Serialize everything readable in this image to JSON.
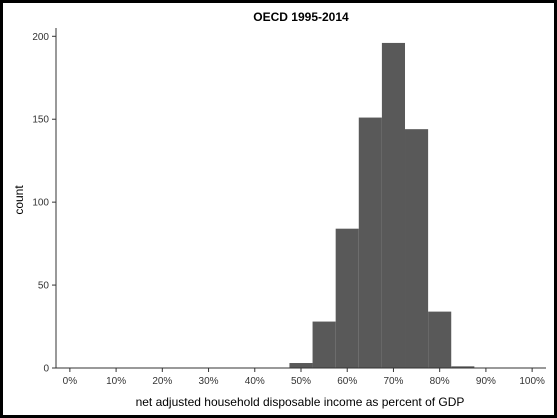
{
  "chart_data": {
    "type": "histogram",
    "title": "OECD 1995-2014",
    "xlabel": "net adjusted household disposable income as percent of GDP",
    "ylabel": "count",
    "xlim": [
      -0.03,
      1.03
    ],
    "ylim": [
      0,
      205
    ],
    "x_ticks": [
      {
        "value": 0.0,
        "label": "0%"
      },
      {
        "value": 0.1,
        "label": "10%"
      },
      {
        "value": 0.2,
        "label": "20%"
      },
      {
        "value": 0.3,
        "label": "30%"
      },
      {
        "value": 0.4,
        "label": "40%"
      },
      {
        "value": 0.5,
        "label": "50%"
      },
      {
        "value": 0.6,
        "label": "60%"
      },
      {
        "value": 0.7,
        "label": "70%"
      },
      {
        "value": 0.8,
        "label": "80%"
      },
      {
        "value": 0.9,
        "label": "90%"
      },
      {
        "value": 1.0,
        "label": "100%"
      }
    ],
    "y_ticks": [
      {
        "value": 0,
        "label": "0"
      },
      {
        "value": 50,
        "label": "50"
      },
      {
        "value": 100,
        "label": "100"
      },
      {
        "value": 150,
        "label": "150"
      },
      {
        "value": 200,
        "label": "200"
      }
    ],
    "bins": [
      {
        "x0": 0.475,
        "x1": 0.525,
        "count": 3
      },
      {
        "x0": 0.525,
        "x1": 0.575,
        "count": 28
      },
      {
        "x0": 0.575,
        "x1": 0.625,
        "count": 84
      },
      {
        "x0": 0.625,
        "x1": 0.675,
        "count": 151
      },
      {
        "x0": 0.675,
        "x1": 0.725,
        "count": 196
      },
      {
        "x0": 0.725,
        "x1": 0.775,
        "count": 144
      },
      {
        "x0": 0.775,
        "x1": 0.825,
        "count": 34
      },
      {
        "x0": 0.825,
        "x1": 0.875,
        "count": 1
      }
    ],
    "bar_color": "#595959",
    "grid": false,
    "legend": "none"
  }
}
